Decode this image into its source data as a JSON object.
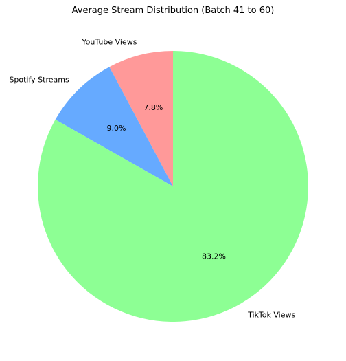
{
  "chart_data": {
    "type": "pie",
    "title": "Average Stream Distribution (Batch 41 to 60)",
    "categories": [
      "YouTube Views",
      "Spotify Streams",
      "TikTok Views"
    ],
    "values": [
      7.8,
      9.0,
      83.2
    ],
    "labels": [
      "7.8%",
      "9.0%",
      "83.2%"
    ],
    "colors": [
      "#ff9999",
      "#66aaff",
      "#8dff94"
    ],
    "start_angle_deg": 90,
    "direction": "counterclockwise",
    "legend": "none"
  }
}
